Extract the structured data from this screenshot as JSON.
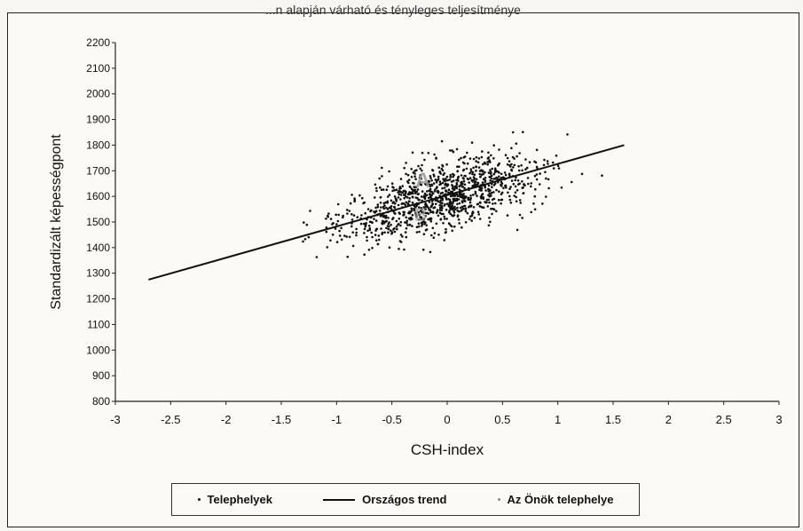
{
  "chart_data": {
    "type": "scatter",
    "title": "...n alapján várható és tényleges teljesítménye",
    "xlabel": "CSH-index",
    "ylabel": "Standardizált képességpont",
    "xlim": [
      -3,
      3
    ],
    "ylim": [
      800,
      2200
    ],
    "x_ticks": [
      "-3",
      "-2.5",
      "-2",
      "-1.5",
      "-1",
      "-0.5",
      "0",
      "0.5",
      "1",
      "1.5",
      "2",
      "2.5",
      "3"
    ],
    "y_ticks": [
      "800",
      "900",
      "1000",
      "1100",
      "1200",
      "1300",
      "1400",
      "1500",
      "1600",
      "1700",
      "1800",
      "1900",
      "2000",
      "2100",
      "2200"
    ],
    "legend_position": "bottom",
    "series": [
      {
        "name": "Telephelyek",
        "kind": "points",
        "color": "#111111",
        "count": 1100,
        "x_range": [
          -2.7,
          1.6
        ],
        "cluster_note": "cloud around trend"
      },
      {
        "name": "Országos trend",
        "kind": "line",
        "color": "#111111",
        "x": [
          -2.7,
          1.6
        ],
        "y": [
          1275,
          1800
        ]
      },
      {
        "name": "Az Önök telephelye",
        "kind": "marker",
        "color": "#999999"
      }
    ],
    "annotations": [
      "A",
      "B"
    ]
  },
  "legend": {
    "sites": "Telephelyek",
    "trend": "Országos trend",
    "yours": "Az Önök telephelye"
  }
}
